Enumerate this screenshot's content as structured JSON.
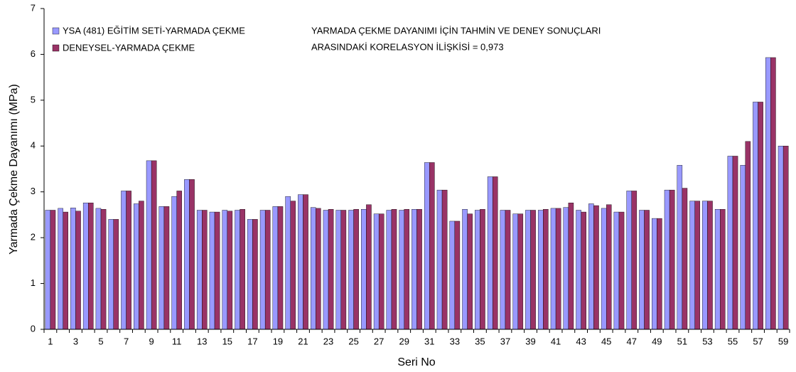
{
  "chart_data": {
    "type": "bar",
    "annotation": [
      "YARMADA ÇEKME DAYANIMI İÇİN TAHMİN VE DENEY SONUÇLARI",
      "ARASINDAKİ KORELASYON İLİŞKİSİ = 0,973"
    ],
    "xlabel": "Seri No",
    "ylabel": "Yarmada Çekme Dayanımı (MPa)",
    "categories": [
      "1",
      null,
      "3",
      null,
      "5",
      null,
      "7",
      null,
      "9",
      null,
      "11",
      null,
      "13",
      null,
      "15",
      null,
      "17",
      null,
      "19",
      null,
      "21",
      null,
      "23",
      null,
      "25",
      null,
      "27",
      null,
      "29",
      null,
      "31",
      null,
      "33",
      null,
      "35",
      null,
      "37",
      null,
      "39",
      null,
      "41",
      null,
      "43",
      null,
      "45",
      null,
      "47",
      null,
      "49",
      null,
      "51",
      null,
      "53",
      null,
      "55",
      null,
      "57",
      null,
      "59"
    ],
    "series": [
      {
        "name": "YSA (481) EĞİTİM SETİ-YARMADA ÇEKME",
        "color": "#9999ff",
        "values": [
          2.6,
          2.64,
          2.65,
          2.76,
          2.64,
          2.4,
          3.02,
          2.74,
          3.68,
          2.68,
          2.9,
          3.27,
          2.6,
          2.56,
          2.6,
          2.6,
          2.4,
          2.6,
          2.68,
          2.9,
          2.94,
          2.66,
          2.6,
          2.6,
          2.6,
          2.62,
          2.52,
          2.6,
          2.6,
          2.62,
          3.64,
          3.04,
          2.36,
          2.62,
          2.6,
          3.33,
          2.6,
          2.52,
          2.6,
          2.6,
          2.64,
          2.66,
          2.6,
          2.74,
          2.64,
          2.56,
          3.02,
          2.6,
          2.42,
          3.04,
          3.58,
          2.8,
          2.8,
          2.62,
          3.78,
          3.58,
          4.96,
          5.93,
          4.0
        ]
      },
      {
        "name": "DENEYSEL-YARMADA ÇEKME",
        "color": "#993366",
        "values": [
          2.6,
          2.56,
          2.58,
          2.76,
          2.62,
          2.4,
          3.02,
          2.8,
          3.68,
          2.68,
          3.02,
          3.27,
          2.6,
          2.56,
          2.58,
          2.62,
          2.4,
          2.6,
          2.68,
          2.8,
          2.94,
          2.64,
          2.62,
          2.6,
          2.62,
          2.72,
          2.52,
          2.62,
          2.62,
          2.62,
          3.64,
          3.04,
          2.36,
          2.52,
          2.62,
          3.33,
          2.6,
          2.52,
          2.6,
          2.62,
          2.64,
          2.76,
          2.56,
          2.7,
          2.72,
          2.56,
          3.02,
          2.6,
          2.42,
          3.04,
          3.08,
          2.8,
          2.8,
          2.62,
          3.78,
          4.1,
          4.96,
          5.93,
          4.0
        ]
      }
    ],
    "ylim": [
      0,
      7
    ],
    "yticks": [
      0,
      1,
      2,
      3,
      4,
      5,
      6,
      7
    ],
    "grid": false,
    "legend": "top-left"
  }
}
